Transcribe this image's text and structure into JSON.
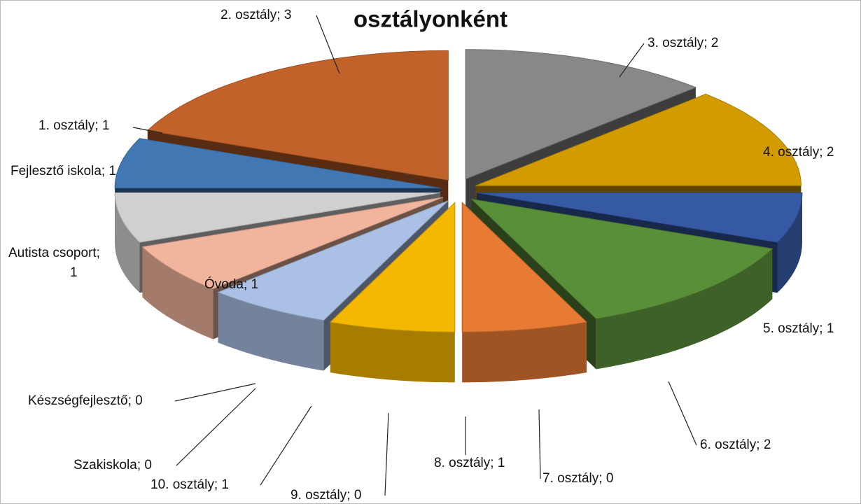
{
  "chart_data": {
    "type": "pie",
    "title": "osztályonként",
    "label_separator": "; ",
    "categories": [
      "3. osztály",
      "4. osztály",
      "5. osztály",
      "6. osztály",
      "7. osztály",
      "8. osztály",
      "9. osztály",
      "10. osztály",
      "Szakiskola",
      "Készségfejlesztő",
      "Óvoda",
      "Autista csoport",
      "Fejlesztő iskola",
      "1. osztály",
      "2. osztály"
    ],
    "values": [
      2,
      2,
      1,
      2,
      0,
      1,
      0,
      1,
      0,
      0,
      1,
      1,
      1,
      1,
      3
    ],
    "colors": [
      "#888888",
      "#d29b00",
      "#3659a4",
      "#5a8f3a",
      "#2b4f7c",
      "#e87b34",
      "#a5a5a5",
      "#f5b800",
      "#4a7f2a",
      "#2e5aa0",
      "#aac0e4",
      "#f1b59d",
      "#d0d0d0",
      "#4178b4",
      "#c2622b"
    ]
  }
}
